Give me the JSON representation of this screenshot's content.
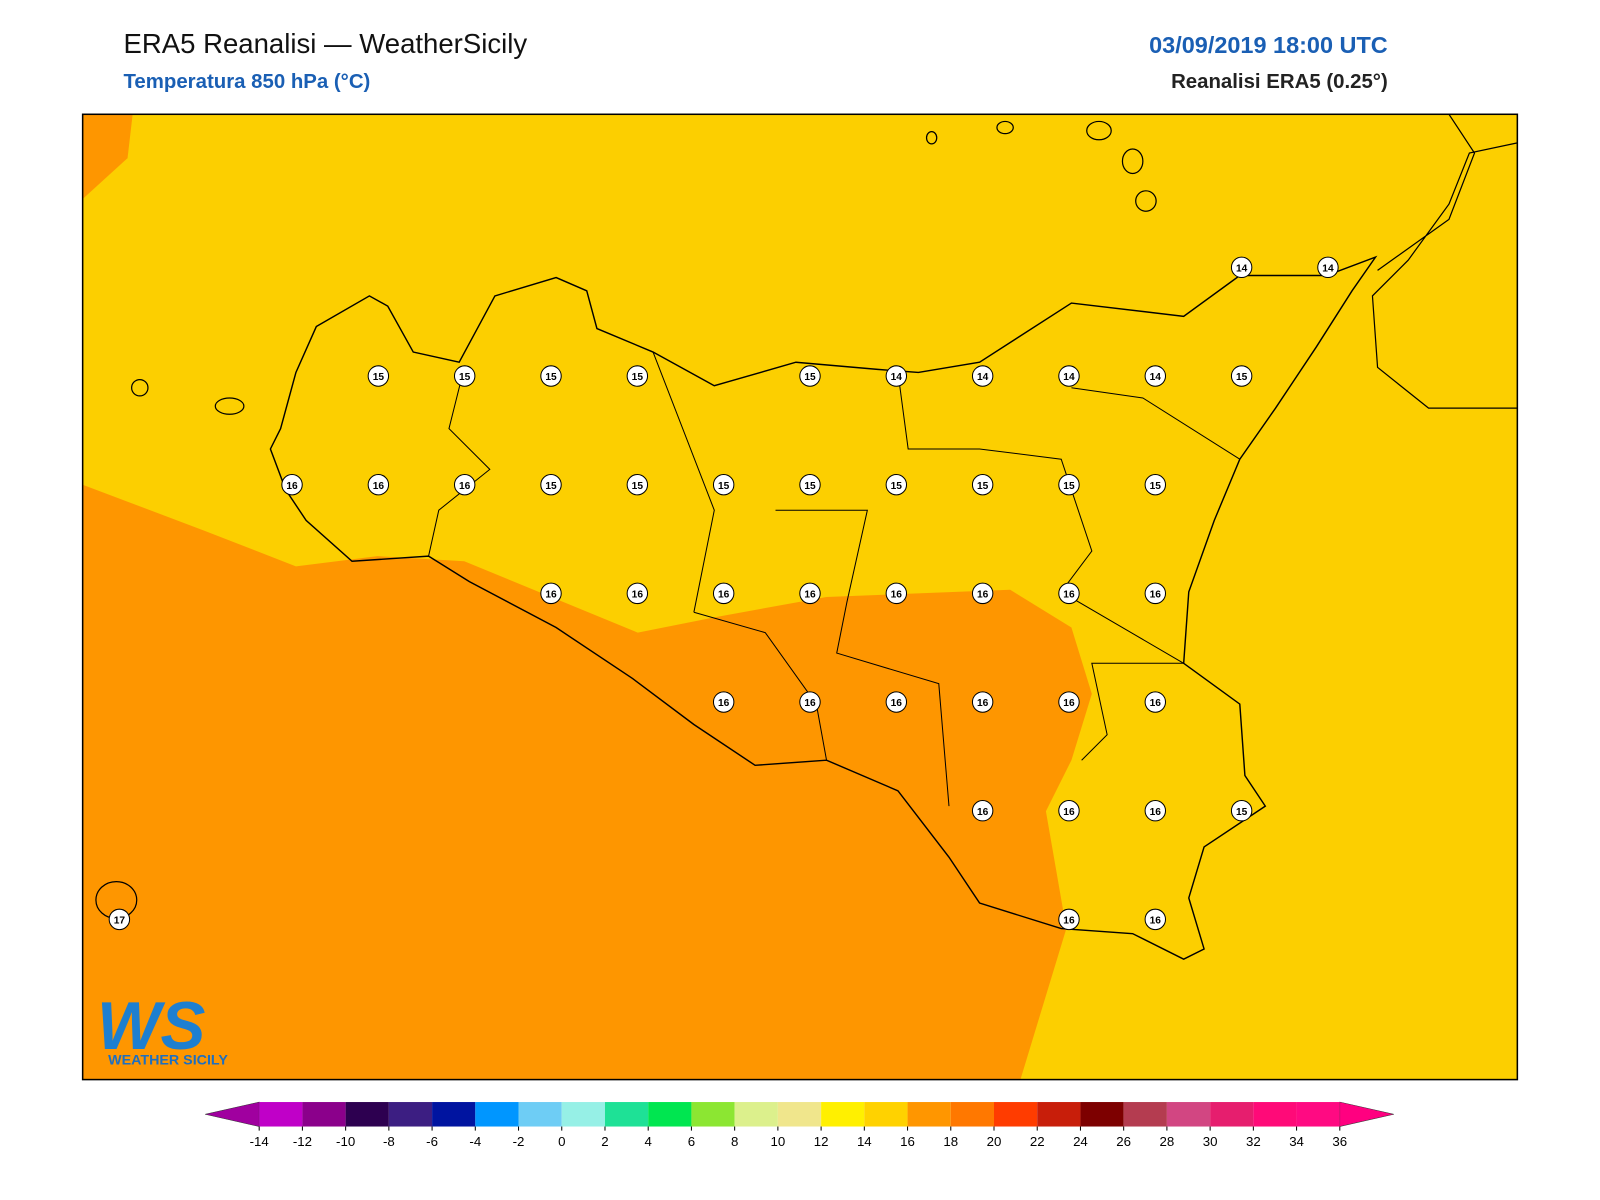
{
  "header": {
    "title": "ERA5 Reanalisi — WeatherSicily",
    "subtitle": "Temperatura 850 hPa (°C)",
    "datetime": "03/09/2019 18:00 UTC",
    "model": "Reanalisi ERA5 (0.25°)"
  },
  "map": {
    "labels": [
      [
        null,
        null,
        null,
        null,
        null,
        null,
        null,
        null,
        null,
        null,
        null,
        null,
        null,
        14,
        14
      ],
      [
        null,
        null,
        null,
        15,
        15,
        15,
        15,
        null,
        15,
        14,
        14,
        14,
        14,
        15,
        null
      ],
      [
        null,
        null,
        16,
        16,
        16,
        15,
        15,
        15,
        15,
        15,
        15,
        15,
        15,
        null,
        null
      ],
      [
        null,
        null,
        null,
        null,
        null,
        16,
        16,
        16,
        16,
        16,
        16,
        16,
        16,
        null,
        null
      ],
      [
        null,
        null,
        null,
        null,
        null,
        null,
        null,
        16,
        16,
        16,
        16,
        16,
        16,
        null,
        null
      ],
      [
        null,
        null,
        null,
        null,
        null,
        null,
        null,
        null,
        null,
        null,
        16,
        16,
        16,
        15,
        null
      ],
      [
        17,
        null,
        null,
        null,
        null,
        null,
        null,
        null,
        null,
        null,
        null,
        16,
        16,
        null,
        null
      ]
    ]
  },
  "colorbar": {
    "ticks": [
      -14,
      -12,
      -10,
      -8,
      -6,
      -4,
      -2,
      0,
      2,
      4,
      6,
      8,
      10,
      12,
      14,
      16,
      18,
      20,
      22,
      24,
      26,
      28,
      30,
      32,
      34,
      36
    ],
    "colors": [
      "#c000c8",
      "#8b008b",
      "#2d0050",
      "#3c1e82",
      "#0014a0",
      "#0096ff",
      "#6ecdf5",
      "#96f0e6",
      "#1ee196",
      "#00e650",
      "#8ce632",
      "#dcf08c",
      "#f0e68c",
      "#fff000",
      "#ffd200",
      "#ff9600",
      "#ff7800",
      "#ff3c00",
      "#c81e0a",
      "#7d0000",
      "#b43c50",
      "#d24682",
      "#e61e6e",
      "#ff0a78",
      "#ff0a82"
    ],
    "under_color": "#a0009f",
    "over_color": "#ff0080"
  },
  "logo": {
    "letters": "WS",
    "text": "WEATHER SICILY"
  }
}
